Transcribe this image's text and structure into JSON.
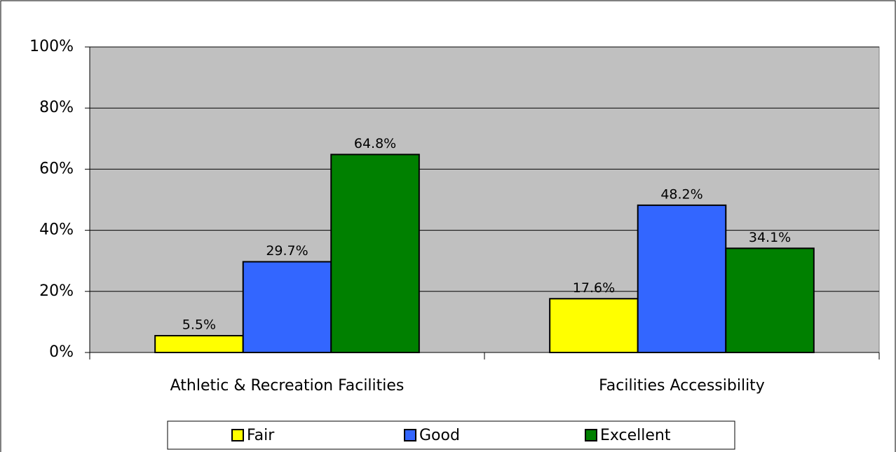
{
  "chart_data": {
    "type": "bar",
    "categories": [
      "Athletic & Recreation Facilities",
      "Facilities Accessibility"
    ],
    "series": [
      {
        "name": "Fair",
        "color": "#ffff00",
        "values": [
          5.5,
          17.6
        ],
        "value_labels": [
          "5.5%",
          "17.6%"
        ]
      },
      {
        "name": "Good",
        "color": "#3366ff",
        "values": [
          29.7,
          48.2
        ],
        "value_labels": [
          "29.7%",
          "48.2%"
        ]
      },
      {
        "name": "Excellent",
        "color": "#008000",
        "values": [
          64.8,
          34.1
        ],
        "value_labels": [
          "64.8%",
          "34.1%"
        ]
      }
    ],
    "ylim": [
      0,
      100
    ],
    "yticks": [
      {
        "value": 0,
        "label": "0%"
      },
      {
        "value": 20,
        "label": "20%"
      },
      {
        "value": 40,
        "label": "40%"
      },
      {
        "value": 60,
        "label": "60%"
      },
      {
        "value": 80,
        "label": "80%"
      },
      {
        "value": 100,
        "label": "100%"
      }
    ],
    "grid": true,
    "legend": "bottom",
    "plot_background": "#c0c0c0"
  }
}
